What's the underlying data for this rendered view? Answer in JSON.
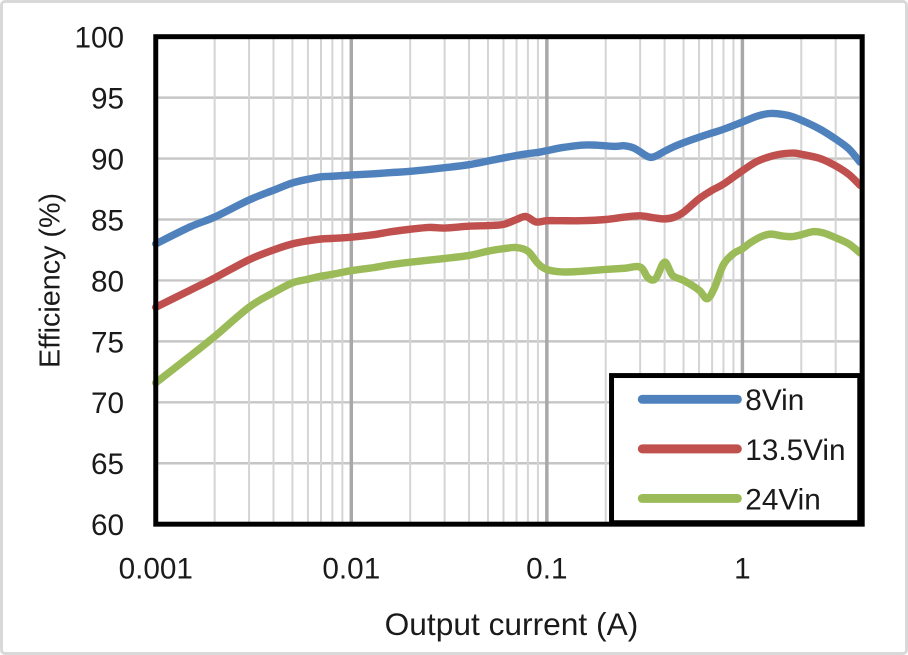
{
  "figure": {
    "background": "#ffffff",
    "frame_color": "#d9d9d9"
  },
  "chart_data": {
    "type": "line",
    "title": "",
    "xlabel": "Output current (A)",
    "ylabel": "Efficiency (%)",
    "x_scale": "log",
    "xlim": [
      0.001,
      4.1
    ],
    "ylim": [
      60,
      100
    ],
    "y_tick_step": 5,
    "y_ticks": [
      "60",
      "65",
      "70",
      "75",
      "80",
      "85",
      "90",
      "95",
      "100"
    ],
    "x_ticks": [
      {
        "value": 0.001,
        "label": "0.001"
      },
      {
        "value": 0.01,
        "label": "0.01"
      },
      {
        "value": 0.1,
        "label": "0.1"
      },
      {
        "value": 1,
        "label": "1"
      }
    ],
    "grid": "log minor + major verticals, 5% horizontals",
    "legend_position": "inside-bottom-right",
    "colors": {
      "plot_border": "#000000",
      "grid_minor_x": "#d4d4d4",
      "grid_major_x": "#a8a8a8",
      "grid_y": "#c6c6c6",
      "text": "#1a1a1a",
      "legend_border": "#000000",
      "legend_bg": "#ffffff"
    },
    "series": [
      {
        "name": "8Vin",
        "color": "#4F81BD",
        "points": [
          [
            0.001,
            83.0
          ],
          [
            0.0015,
            84.4
          ],
          [
            0.002,
            85.2
          ],
          [
            0.003,
            86.6
          ],
          [
            0.004,
            87.4
          ],
          [
            0.005,
            88.0
          ],
          [
            0.006,
            88.3
          ],
          [
            0.007,
            88.5
          ],
          [
            0.008,
            88.55
          ],
          [
            0.01,
            88.65
          ],
          [
            0.013,
            88.75
          ],
          [
            0.016,
            88.85
          ],
          [
            0.02,
            88.95
          ],
          [
            0.03,
            89.25
          ],
          [
            0.04,
            89.5
          ],
          [
            0.05,
            89.8
          ],
          [
            0.06,
            90.05
          ],
          [
            0.07,
            90.25
          ],
          [
            0.08,
            90.4
          ],
          [
            0.09,
            90.5
          ],
          [
            0.1,
            90.65
          ],
          [
            0.12,
            90.9
          ],
          [
            0.15,
            91.1
          ],
          [
            0.18,
            91.1
          ],
          [
            0.22,
            91.0
          ],
          [
            0.25,
            91.05
          ],
          [
            0.28,
            90.85
          ],
          [
            0.33,
            90.15
          ],
          [
            0.36,
            90.2
          ],
          [
            0.4,
            90.6
          ],
          [
            0.45,
            91.0
          ],
          [
            0.5,
            91.3
          ],
          [
            0.6,
            91.75
          ],
          [
            0.7,
            92.1
          ],
          [
            0.8,
            92.4
          ],
          [
            1.0,
            93.0
          ],
          [
            1.2,
            93.5
          ],
          [
            1.4,
            93.7
          ],
          [
            1.7,
            93.55
          ],
          [
            2.0,
            93.15
          ],
          [
            2.5,
            92.4
          ],
          [
            3.0,
            91.6
          ],
          [
            3.5,
            90.8
          ],
          [
            4.0,
            89.7
          ]
        ]
      },
      {
        "name": "13.5Vin",
        "color": "#C0504D",
        "points": [
          [
            0.001,
            77.8
          ],
          [
            0.0015,
            79.2
          ],
          [
            0.002,
            80.2
          ],
          [
            0.003,
            81.7
          ],
          [
            0.004,
            82.5
          ],
          [
            0.005,
            83.0
          ],
          [
            0.006,
            83.25
          ],
          [
            0.007,
            83.4
          ],
          [
            0.008,
            83.45
          ],
          [
            0.01,
            83.55
          ],
          [
            0.013,
            83.75
          ],
          [
            0.016,
            84.0
          ],
          [
            0.02,
            84.2
          ],
          [
            0.025,
            84.35
          ],
          [
            0.03,
            84.3
          ],
          [
            0.04,
            84.45
          ],
          [
            0.05,
            84.5
          ],
          [
            0.06,
            84.6
          ],
          [
            0.07,
            85.0
          ],
          [
            0.078,
            85.25
          ],
          [
            0.088,
            84.8
          ],
          [
            0.1,
            84.9
          ],
          [
            0.12,
            84.9
          ],
          [
            0.15,
            84.9
          ],
          [
            0.2,
            85.0
          ],
          [
            0.25,
            85.2
          ],
          [
            0.3,
            85.3
          ],
          [
            0.35,
            85.15
          ],
          [
            0.4,
            85.05
          ],
          [
            0.45,
            85.2
          ],
          [
            0.5,
            85.6
          ],
          [
            0.6,
            86.7
          ],
          [
            0.7,
            87.4
          ],
          [
            0.8,
            87.9
          ],
          [
            1.0,
            89.0
          ],
          [
            1.2,
            89.8
          ],
          [
            1.5,
            90.3
          ],
          [
            1.8,
            90.45
          ],
          [
            2.0,
            90.35
          ],
          [
            2.5,
            90.0
          ],
          [
            3.0,
            89.4
          ],
          [
            3.5,
            88.7
          ],
          [
            4.0,
            87.8
          ]
        ]
      },
      {
        "name": "24Vin",
        "color": "#9BBB59",
        "points": [
          [
            0.001,
            71.6
          ],
          [
            0.0015,
            73.8
          ],
          [
            0.002,
            75.4
          ],
          [
            0.003,
            77.8
          ],
          [
            0.004,
            79.0
          ],
          [
            0.005,
            79.8
          ],
          [
            0.006,
            80.1
          ],
          [
            0.007,
            80.35
          ],
          [
            0.008,
            80.5
          ],
          [
            0.01,
            80.8
          ],
          [
            0.013,
            81.05
          ],
          [
            0.016,
            81.3
          ],
          [
            0.02,
            81.5
          ],
          [
            0.03,
            81.8
          ],
          [
            0.04,
            82.05
          ],
          [
            0.05,
            82.4
          ],
          [
            0.06,
            82.6
          ],
          [
            0.07,
            82.7
          ],
          [
            0.08,
            82.4
          ],
          [
            0.09,
            81.4
          ],
          [
            0.1,
            80.9
          ],
          [
            0.12,
            80.7
          ],
          [
            0.15,
            80.75
          ],
          [
            0.2,
            80.9
          ],
          [
            0.25,
            81.0
          ],
          [
            0.3,
            81.1
          ],
          [
            0.33,
            80.2
          ],
          [
            0.36,
            80.15
          ],
          [
            0.4,
            81.5
          ],
          [
            0.44,
            80.4
          ],
          [
            0.5,
            80.0
          ],
          [
            0.6,
            79.2
          ],
          [
            0.66,
            78.5
          ],
          [
            0.72,
            79.4
          ],
          [
            0.8,
            81.3
          ],
          [
            0.9,
            82.2
          ],
          [
            1.0,
            82.6
          ],
          [
            1.1,
            83.1
          ],
          [
            1.25,
            83.6
          ],
          [
            1.4,
            83.8
          ],
          [
            1.6,
            83.65
          ],
          [
            1.8,
            83.6
          ],
          [
            2.0,
            83.75
          ],
          [
            2.3,
            84.0
          ],
          [
            2.6,
            83.9
          ],
          [
            3.0,
            83.5
          ],
          [
            3.5,
            83.0
          ],
          [
            4.0,
            82.25
          ]
        ]
      }
    ]
  }
}
